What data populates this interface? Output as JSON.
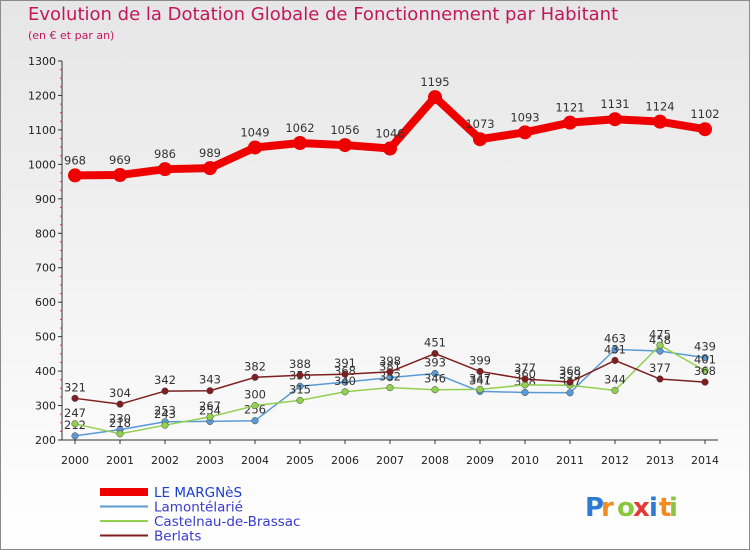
{
  "title": "Evolution de la Dotation Globale de Fonctionnement par Habitant",
  "subtitle": "(en € et par an)",
  "brand": {
    "letters": [
      "P",
      "r",
      "o",
      "x",
      "i",
      "t",
      "i"
    ],
    "colors": [
      "#2e7bd6",
      "#f28c1e",
      "#8cc63f",
      "#e53935",
      "#2e7bd6",
      "#f28c1e",
      "#8cc63f"
    ]
  },
  "chart_data": {
    "type": "line",
    "x": [
      "2000",
      "2001",
      "2002",
      "2003",
      "2004",
      "2005",
      "2006",
      "2007",
      "2008",
      "2009",
      "2010",
      "2011",
      "2012",
      "2013",
      "2014"
    ],
    "ylim": [
      200,
      1300
    ],
    "yticks": [
      200,
      300,
      400,
      500,
      600,
      700,
      800,
      900,
      1000,
      1100,
      1200,
      1300
    ],
    "grid": false,
    "legend_position": "bottom-left",
    "series": [
      {
        "name": "LE MARGNèS",
        "color": "#ee0000",
        "emphasis": true,
        "values": [
          968,
          969,
          986,
          989,
          1049,
          1062,
          1056,
          1046,
          1195,
          1073,
          1093,
          1121,
          1131,
          1124,
          1102
        ]
      },
      {
        "name": "Lamontélarié",
        "color": "#5b9bd5",
        "values": [
          212,
          230,
          253,
          254,
          256,
          356,
          368,
          381,
          393,
          341,
          338,
          337,
          463,
          458,
          439
        ]
      },
      {
        "name": "Castelnau-de-Brassac",
        "color": "#92d050",
        "values": [
          247,
          218,
          243,
          267,
          300,
          315,
          340,
          352,
          346,
          347,
          360,
          359,
          344,
          475,
          401
        ]
      },
      {
        "name": "Berlats",
        "color": "#7f1f1f",
        "values": [
          321,
          304,
          342,
          343,
          382,
          388,
          391,
          398,
          451,
          399,
          377,
          368,
          431,
          377,
          368
        ]
      }
    ]
  }
}
